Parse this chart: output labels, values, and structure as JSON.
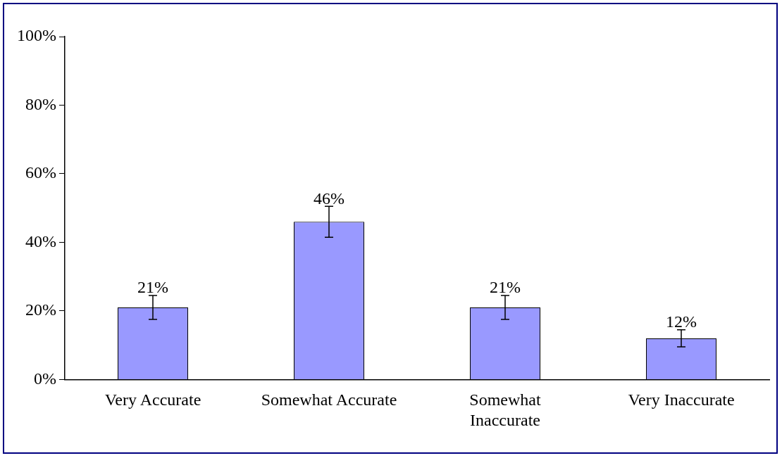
{
  "chart_data": {
    "type": "bar",
    "categories": [
      "Very Accurate",
      "Somewhat Accurate",
      "Somewhat Inaccurate",
      "Very Inaccurate"
    ],
    "values": [
      21,
      46,
      21,
      12
    ],
    "errors": [
      3.5,
      4.5,
      3.5,
      2.5
    ],
    "color": "#9999ff",
    "ylim": [
      0,
      100
    ],
    "yticks": [
      {
        "value": 0,
        "label": "0%"
      },
      {
        "value": 20,
        "label": "20%"
      },
      {
        "value": 40,
        "label": "40%"
      },
      {
        "value": 60,
        "label": "60%"
      },
      {
        "value": 80,
        "label": "80%"
      },
      {
        "value": 100,
        "label": "100%"
      }
    ],
    "value_labels": [
      "21%",
      "46%",
      "21%",
      "12%"
    ],
    "grid": false,
    "legend": false
  }
}
